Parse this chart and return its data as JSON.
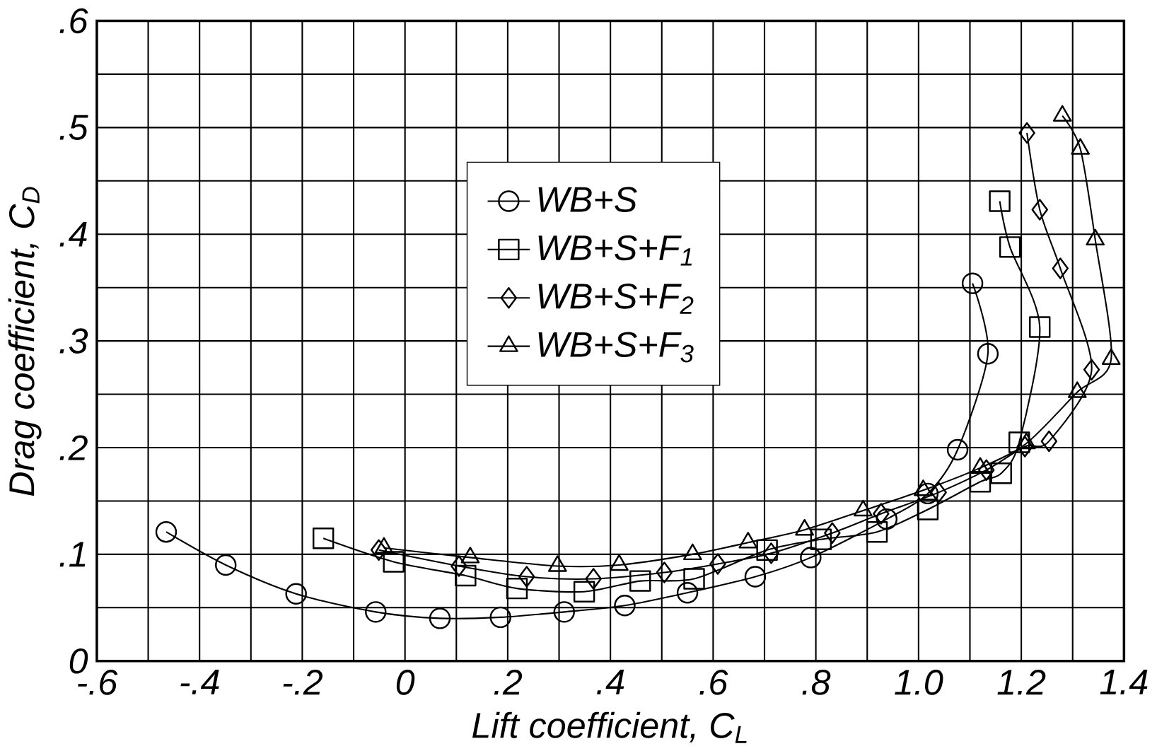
{
  "chart_data": {
    "type": "line",
    "xlabel": "Lift coefficient, C$_{L}$",
    "ylabel": "Drag coefficient, C$_{D}$",
    "xlim": [
      -0.6,
      1.4
    ],
    "ylim": [
      0,
      0.6
    ],
    "xticks": [
      {
        "value": -0.6,
        "label": "-.6"
      },
      {
        "value": -0.4,
        "label": "-.4"
      },
      {
        "value": -0.2,
        "label": "-.2"
      },
      0,
      {
        "value": 0.2,
        "label": ".2"
      },
      {
        "value": 0.4,
        "label": ".4"
      },
      {
        "value": 0.6,
        "label": ".6"
      },
      {
        "value": 0.8,
        "label": ".8"
      },
      {
        "value": 1.0,
        "label": "1.0"
      },
      {
        "value": 1.2,
        "label": "1.2"
      },
      {
        "value": 1.4,
        "label": "1.4"
      }
    ],
    "yticks": [
      0,
      {
        "value": 0.1,
        "label": ".1"
      },
      {
        "value": 0.2,
        "label": ".2"
      },
      {
        "value": 0.3,
        "label": ".3"
      },
      {
        "value": 0.4,
        "label": ".4"
      },
      {
        "value": 0.5,
        "label": ".5"
      },
      {
        "value": 0.6,
        "label": ".6"
      }
    ],
    "grid": true,
    "legend": "top left",
    "line_style": "solid",
    "series": [
      {
        "name": "WB+S",
        "color": "#000000",
        "marker": "circle",
        "x": [
          -0.465,
          -0.349,
          -0.212,
          -0.057,
          0.068,
          0.186,
          0.31,
          0.428,
          0.55,
          0.682,
          0.79,
          0.938,
          1.018,
          1.076,
          1.135,
          1.105
        ],
        "values": [
          0.121,
          0.09,
          0.063,
          0.046,
          0.04,
          0.041,
          0.046,
          0.052,
          0.064,
          0.079,
          0.097,
          0.133,
          0.157,
          0.198,
          0.288,
          0.354
        ]
      },
      {
        "name": "WB+S+F$_{1}$",
        "color": "#000000",
        "marker": "square",
        "x": [
          -0.159,
          -0.022,
          0.118,
          0.218,
          0.349,
          0.458,
          0.563,
          0.705,
          0.81,
          0.919,
          1.018,
          1.12,
          1.161,
          1.196,
          1.236,
          1.178,
          1.158
        ],
        "values": [
          0.115,
          0.093,
          0.08,
          0.068,
          0.065,
          0.075,
          0.077,
          0.104,
          0.114,
          0.121,
          0.142,
          0.168,
          0.176,
          0.205,
          0.313,
          0.388,
          0.431
        ]
      },
      {
        "name": "WB+S+F$_{2}$",
        "color": "#000000",
        "marker": "diamond",
        "x": [
          -0.051,
          0.105,
          0.237,
          0.367,
          0.505,
          0.609,
          0.713,
          0.832,
          0.927,
          1.039,
          1.132,
          1.207,
          1.254,
          1.337,
          1.276,
          1.236,
          1.211
        ],
        "values": [
          0.104,
          0.089,
          0.079,
          0.077,
          0.083,
          0.091,
          0.101,
          0.12,
          0.138,
          0.158,
          0.179,
          0.201,
          0.206,
          0.273,
          0.368,
          0.423,
          0.495
        ]
      },
      {
        "name": "WB+S+F$_{3}$",
        "color": "#000000",
        "marker": "triangle",
        "x": [
          -0.041,
          0.127,
          0.297,
          0.417,
          0.56,
          0.668,
          0.778,
          0.892,
          1.009,
          1.12,
          1.21,
          1.309,
          1.375,
          1.344,
          1.315,
          1.28
        ],
        "values": [
          0.106,
          0.097,
          0.089,
          0.09,
          0.1,
          0.111,
          0.123,
          0.141,
          0.16,
          0.181,
          0.204,
          0.252,
          0.283,
          0.395,
          0.48,
          0.511
        ]
      }
    ]
  }
}
